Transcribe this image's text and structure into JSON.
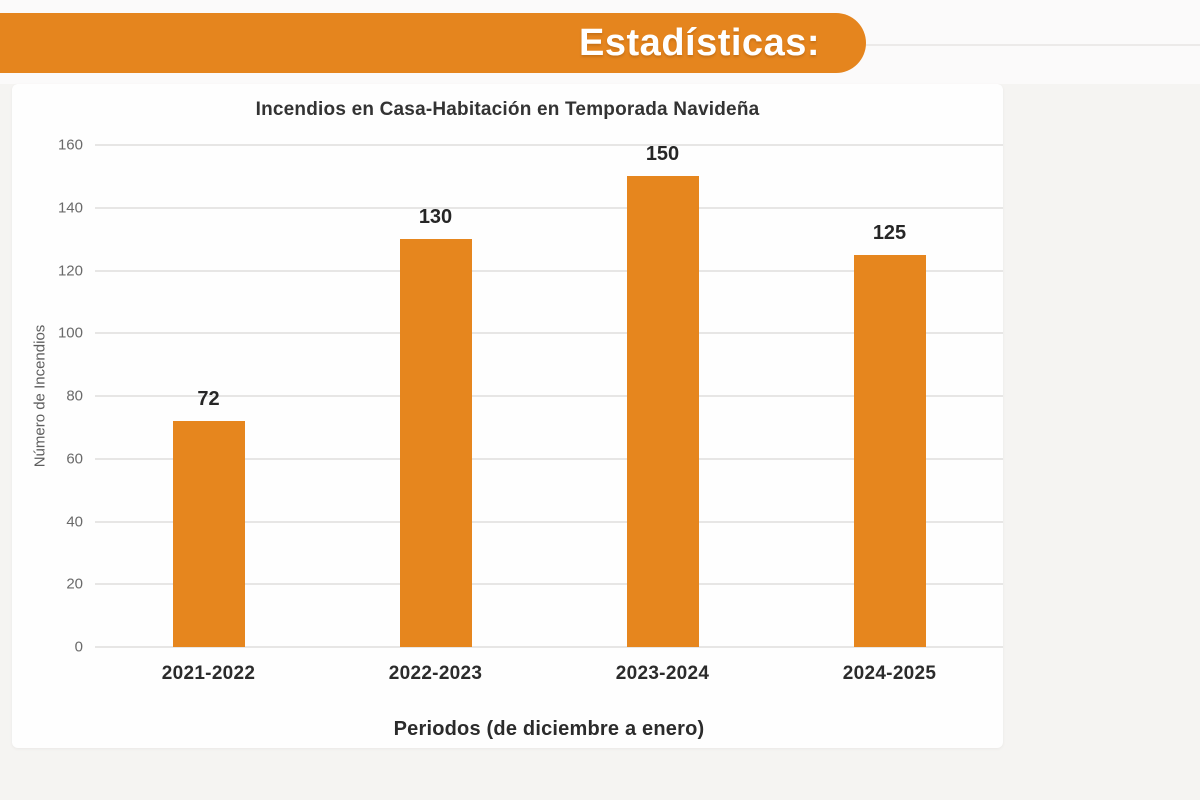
{
  "header": {
    "title": "Estadísticas:"
  },
  "colors": {
    "accent": "#E5851E",
    "bar": "#E6861E",
    "grid": "#E7E6E5",
    "card_background": "#FEFEFE",
    "page_background": "#F5F4F2"
  },
  "chart_data": {
    "type": "bar",
    "title": "Incendios en Casa-Habitación en Temporada Navideña",
    "categories": [
      "2021-2022",
      "2022-2023",
      "2023-2024",
      "2024-2025"
    ],
    "values": [
      72,
      130,
      150,
      125
    ],
    "bar_labels": [
      "72",
      "130",
      "150",
      "125"
    ],
    "xlabel": "Periodos (de diciembre a enero)",
    "ylabel": "Número de Incendios",
    "ylim": [
      0,
      160
    ],
    "yticks": [
      0,
      20,
      40,
      60,
      80,
      100,
      120,
      140,
      160
    ],
    "grid": "horizontal",
    "legend": "none",
    "bar_color": "#E6861E"
  }
}
